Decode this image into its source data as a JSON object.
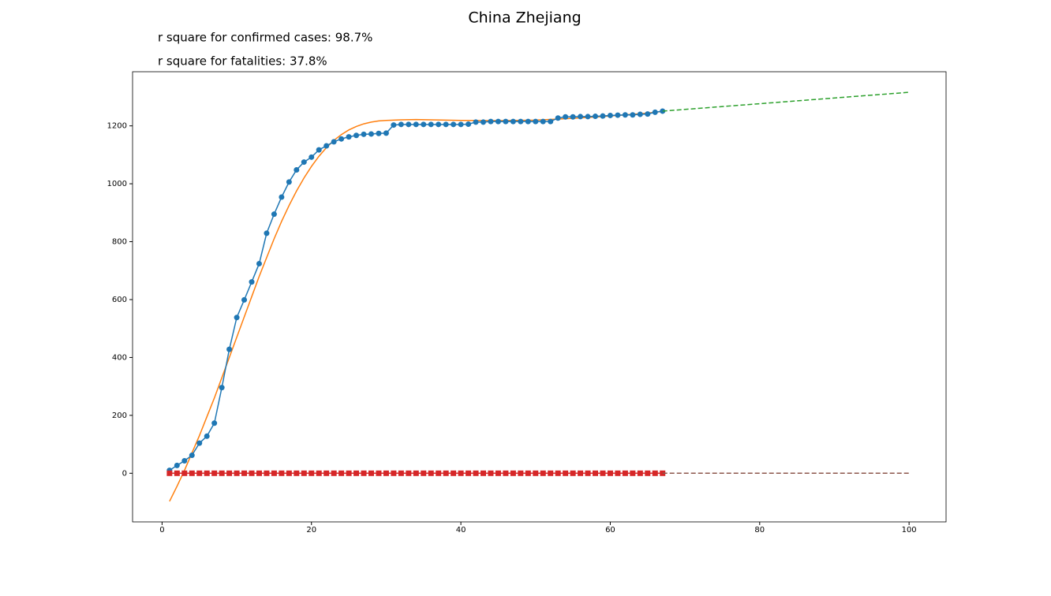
{
  "chart_data": {
    "type": "line",
    "title": "China Zhejiang",
    "annotations": [
      "r square for confirmed cases: 98.7%",
      "r square for fatalities: 37.8%"
    ],
    "xlim": [
      -3.95,
      104.95
    ],
    "xticks": [
      0,
      20,
      40,
      60,
      80,
      100
    ],
    "ylim": [
      -168,
      1387
    ],
    "yticks": [
      0,
      200,
      400,
      600,
      800,
      1000,
      1200
    ],
    "series": [
      {
        "color": "#ff7f0e",
        "marker": "none",
        "dash": false,
        "x": [
          1,
          2,
          3,
          4,
          5,
          6,
          7,
          8,
          9,
          10,
          11,
          12,
          13,
          14,
          15,
          16,
          17,
          18,
          19,
          20,
          21,
          22,
          23,
          24,
          25,
          26,
          27,
          28,
          29,
          30,
          32,
          34,
          36,
          38,
          40,
          45,
          50,
          55,
          60,
          65,
          67
        ],
        "values": [
          -97,
          -45,
          10,
          70,
          130,
          195,
          260,
          330,
          400,
          470,
          540,
          610,
          680,
          745,
          810,
          870,
          925,
          975,
          1020,
          1060,
          1095,
          1125,
          1150,
          1170,
          1186,
          1198,
          1207,
          1213,
          1217,
          1219,
          1221,
          1222,
          1221,
          1220,
          1219,
          1218,
          1220,
          1226,
          1234,
          1244,
          1250
        ]
      },
      {
        "color": "#1f77b4",
        "marker": "circle",
        "dash": false,
        "x": [
          1,
          2,
          3,
          4,
          5,
          6,
          7,
          8,
          9,
          10,
          11,
          12,
          13,
          14,
          15,
          16,
          17,
          18,
          19,
          20,
          21,
          22,
          23,
          24,
          25,
          26,
          27,
          28,
          29,
          30,
          31,
          32,
          33,
          34,
          35,
          36,
          37,
          38,
          39,
          40,
          41,
          42,
          43,
          44,
          45,
          46,
          47,
          48,
          49,
          50,
          51,
          52,
          53,
          54,
          55,
          56,
          57,
          58,
          59,
          60,
          61,
          62,
          63,
          64,
          65,
          66,
          67
        ],
        "values": [
          10,
          27,
          43,
          62,
          104,
          128,
          173,
          296,
          428,
          538,
          599,
          661,
          724,
          829,
          895,
          954,
          1006,
          1048,
          1075,
          1092,
          1117,
          1131,
          1145,
          1155,
          1162,
          1167,
          1171,
          1172,
          1174,
          1175,
          1203,
          1205,
          1205,
          1205,
          1205,
          1205,
          1205,
          1205,
          1205,
          1205,
          1206,
          1213,
          1213,
          1215,
          1215,
          1215,
          1215,
          1215,
          1215,
          1215,
          1215,
          1215,
          1227,
          1231,
          1231,
          1232,
          1232,
          1233,
          1234,
          1236,
          1237,
          1238,
          1238,
          1240,
          1241,
          1247,
          1251
        ]
      },
      {
        "color": "#d62728",
        "marker": "square",
        "dash": false,
        "x": [
          1,
          2,
          3,
          4,
          5,
          6,
          7,
          8,
          9,
          10,
          11,
          12,
          13,
          14,
          15,
          16,
          17,
          18,
          19,
          20,
          21,
          22,
          23,
          24,
          25,
          26,
          27,
          28,
          29,
          30,
          31,
          32,
          33,
          34,
          35,
          36,
          37,
          38,
          39,
          40,
          41,
          42,
          43,
          44,
          45,
          46,
          47,
          48,
          49,
          50,
          51,
          52,
          53,
          54,
          55,
          56,
          57,
          58,
          59,
          60,
          61,
          62,
          63,
          64,
          65,
          66,
          67
        ],
        "values": [
          0,
          0,
          0,
          0,
          0,
          0,
          0,
          0,
          0,
          0,
          0,
          0,
          0,
          0,
          0,
          0,
          0,
          0,
          0,
          0,
          0,
          0,
          0,
          0,
          0,
          0,
          0,
          0,
          0,
          0,
          0,
          0,
          0,
          0,
          0,
          0,
          0,
          0,
          0,
          0,
          0,
          0,
          0,
          0,
          0,
          0,
          0,
          0,
          0,
          0,
          0,
          0,
          0,
          0,
          0,
          0,
          0,
          0,
          0,
          0,
          0,
          0,
          0,
          0,
          0,
          0,
          0
        ]
      },
      {
        "color": "#2ca02c",
        "marker": "none",
        "dash": true,
        "x": [
          67,
          100
        ],
        "values": [
          1251,
          1316
        ]
      },
      {
        "color": "#8c564b",
        "marker": "none",
        "dash": true,
        "x": [
          67,
          100
        ],
        "values": [
          0,
          0
        ]
      }
    ]
  }
}
